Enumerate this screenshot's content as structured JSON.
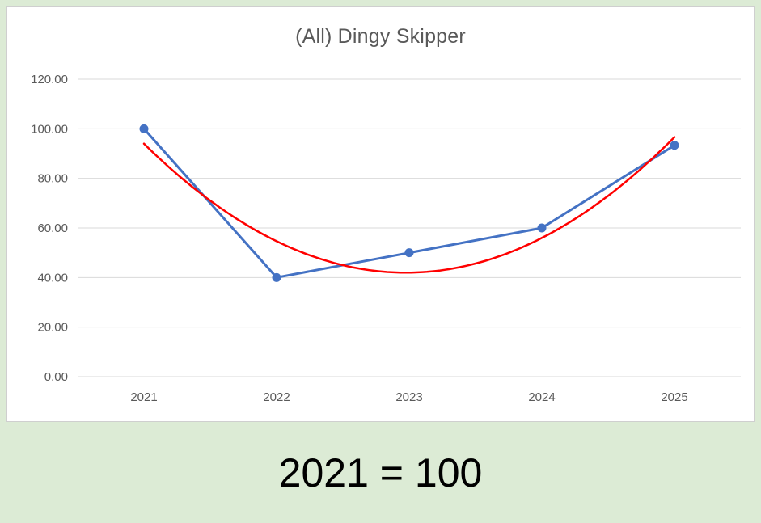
{
  "page": {
    "background_color": "#dcebd5"
  },
  "caption": {
    "text": "2021 = 100"
  },
  "chart_data": {
    "type": "line",
    "title": "(All) Dingy Skipper",
    "title_color": "#595959",
    "categories": [
      "2021",
      "2022",
      "2023",
      "2024",
      "2025"
    ],
    "series": [
      {
        "color": "#4472c4",
        "values": [
          100,
          40,
          50,
          60,
          93.33
        ],
        "markers": true,
        "line_width": 3
      }
    ],
    "trendline": {
      "type": "polynomial",
      "order": 2,
      "color": "#ff0000",
      "line_width": 2.5,
      "coefficients": [
        13.337,
        -52.686,
        94.007
      ],
      "x_unit": "category_index"
    },
    "ylim": [
      0,
      120
    ],
    "ytick_step": 20,
    "ytick_format_decimals": 2,
    "grid": "horizontal",
    "grid_color": "#d9d9d9",
    "axis_label_color": "#595959",
    "legend": "none"
  }
}
